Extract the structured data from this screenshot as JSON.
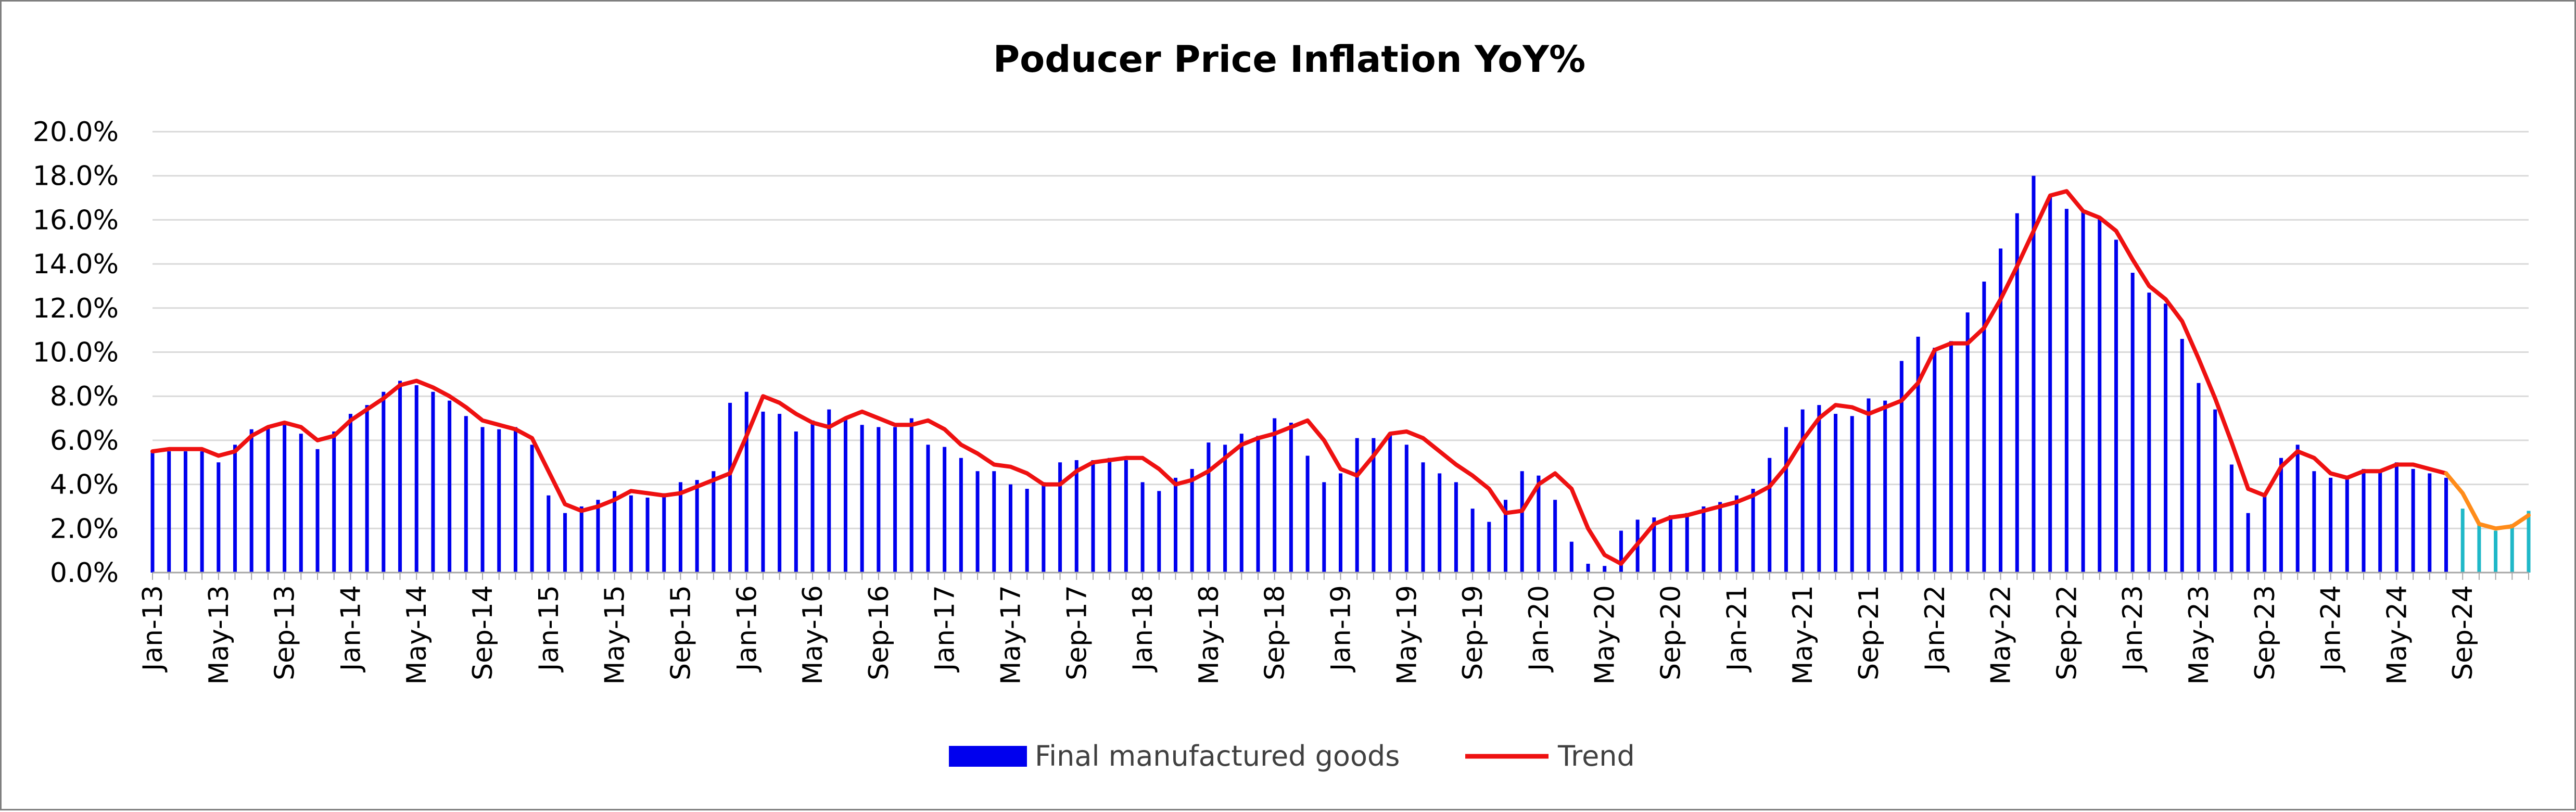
{
  "chart_data": {
    "type": "bar",
    "title": "Poducer Price Inflation YoY%",
    "xlabel": "",
    "ylabel": "",
    "ylim": [
      0,
      20
    ],
    "ytick_labels": [
      "0.0%",
      "2.0%",
      "4.0%",
      "6.0%",
      "8.0%",
      "10.0%",
      "12.0%",
      "14.0%",
      "16.0%",
      "18.0%",
      "20.0%"
    ],
    "grid": true,
    "legend_position": "bottom",
    "x_tick_labels": [
      "Jan-13",
      "May-13",
      "Sep-13",
      "Jan-14",
      "May-14",
      "Sep-14",
      "Jan-15",
      "May-15",
      "Sep-15",
      "Jan-16",
      "May-16",
      "Sep-16",
      "Jan-17",
      "May-17",
      "Sep-17",
      "Jan-18",
      "May-18",
      "Sep-18",
      "Jan-19",
      "May-19",
      "Sep-19",
      "Jan-20",
      "May-20",
      "Sep-20",
      "Jan-21",
      "May-21",
      "Sep-21",
      "Jan-22",
      "May-22",
      "Sep-22",
      "Jan-23",
      "May-23",
      "Sep-23",
      "Jan-24",
      "May-24",
      "Sep-24"
    ],
    "start_month": "Jan-13",
    "bar_color": "#0000ee",
    "highlight_bar_color": "#1fb8c8",
    "highlight_from_index": 140,
    "trend_color": "#ee1111",
    "trend_highlight_color": "#ff8c1a",
    "series": [
      {
        "name": "Final manufactured goods",
        "kind": "bar",
        "values": [
          5.5,
          5.5,
          5.5,
          5.5,
          5.0,
          5.8,
          6.5,
          6.6,
          6.7,
          6.3,
          5.6,
          6.4,
          7.2,
          7.6,
          8.2,
          8.7,
          8.5,
          8.2,
          7.8,
          7.1,
          6.6,
          6.5,
          6.6,
          5.8,
          3.5,
          2.7,
          3.0,
          3.3,
          3.7,
          3.5,
          3.4,
          3.6,
          4.1,
          4.2,
          4.6,
          7.7,
          8.2,
          7.3,
          7.2,
          6.4,
          6.9,
          7.4,
          7.0,
          6.7,
          6.6,
          6.6,
          7.0,
          5.8,
          5.7,
          5.2,
          4.6,
          4.6,
          4.0,
          3.8,
          4.1,
          5.0,
          5.1,
          5.1,
          5.2,
          5.1,
          4.1,
          3.7,
          4.3,
          4.7,
          5.9,
          5.8,
          6.3,
          6.2,
          7.0,
          6.8,
          5.3,
          4.1,
          4.5,
          6.1,
          6.1,
          6.3,
          5.8,
          5.0,
          4.5,
          4.1,
          2.9,
          2.3,
          3.3,
          4.6,
          4.4,
          3.3,
          1.4,
          0.4,
          0.3,
          1.9,
          2.4,
          2.5,
          2.6,
          2.7,
          3.0,
          3.2,
          3.5,
          3.8,
          5.2,
          6.6,
          7.4,
          7.6,
          7.2,
          7.1,
          7.9,
          7.8,
          9.6,
          10.7,
          10.2,
          10.5,
          11.8,
          13.2,
          14.7,
          16.3,
          18.0,
          17.1,
          16.5,
          16.4,
          16.1,
          15.1,
          13.6,
          12.7,
          12.2,
          10.6,
          8.6,
          7.4,
          4.9,
          2.7,
          3.5,
          5.2,
          5.8,
          4.6,
          4.3,
          4.4,
          4.7,
          4.6,
          5.0,
          4.7,
          4.5,
          4.3,
          2.9,
          2.2,
          1.9,
          2.2,
          2.8
        ]
      },
      {
        "name": "Trend",
        "kind": "line",
        "values": [
          5.5,
          5.6,
          5.6,
          5.6,
          5.3,
          5.5,
          6.2,
          6.6,
          6.8,
          6.6,
          6.0,
          6.2,
          6.9,
          7.4,
          7.9,
          8.5,
          8.7,
          8.4,
          8.0,
          7.5,
          6.9,
          6.7,
          6.5,
          6.1,
          4.6,
          3.1,
          2.8,
          3.0,
          3.3,
          3.7,
          3.6,
          3.5,
          3.6,
          3.9,
          4.2,
          4.5,
          6.2,
          8.0,
          7.7,
          7.2,
          6.8,
          6.6,
          7.0,
          7.3,
          7.0,
          6.7,
          6.7,
          6.9,
          6.5,
          5.8,
          5.4,
          4.9,
          4.8,
          4.5,
          4.0,
          4.0,
          4.6,
          5.0,
          5.1,
          5.2,
          5.2,
          4.7,
          4.0,
          4.2,
          4.6,
          5.2,
          5.8,
          6.1,
          6.3,
          6.6,
          6.9,
          6.0,
          4.7,
          4.4,
          5.3,
          6.3,
          6.4,
          6.1,
          5.5,
          4.9,
          4.4,
          3.8,
          2.7,
          2.8,
          4.0,
          4.5,
          3.8,
          2.0,
          0.8,
          0.4,
          1.3,
          2.2,
          2.5,
          2.6,
          2.8,
          3.0,
          3.2,
          3.5,
          3.9,
          4.8,
          6.0,
          7.0,
          7.6,
          7.5,
          7.2,
          7.5,
          7.8,
          8.6,
          10.1,
          10.4,
          10.4,
          11.1,
          12.4,
          13.9,
          15.5,
          17.1,
          17.3,
          16.4,
          16.1,
          15.5,
          14.2,
          13.0,
          12.4,
          11.4,
          9.7,
          7.9,
          5.9,
          3.8,
          3.5,
          4.8,
          5.5,
          5.2,
          4.5,
          4.3,
          4.6,
          4.6,
          4.9,
          4.9,
          4.7,
          4.5,
          3.6,
          2.2,
          2.0,
          2.1,
          2.6
        ]
      }
    ]
  }
}
